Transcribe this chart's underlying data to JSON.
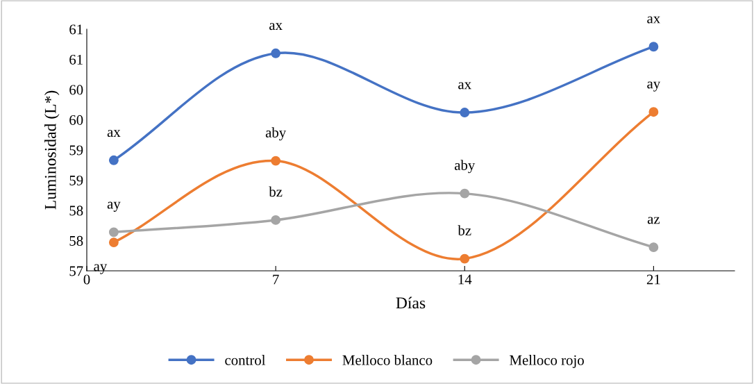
{
  "chart_data": {
    "type": "line",
    "xlabel": "Días",
    "ylabel": "Luminosidad (L*)",
    "x": [
      1,
      7,
      14,
      21
    ],
    "series": [
      {
        "name": "control",
        "color": "#4472c4",
        "values": [
          58.83,
          60.6,
          59.62,
          60.71
        ]
      },
      {
        "name": "Melloco blanco",
        "color": "#ed7d31",
        "values": [
          57.47,
          58.82,
          57.2,
          59.63
        ]
      },
      {
        "name": "Melloco rojo",
        "color": "#a5a5a5",
        "values": [
          57.64,
          57.84,
          58.28,
          57.39
        ]
      }
    ],
    "xlim": [
      0,
      24
    ],
    "xticks": [
      0,
      7,
      14,
      21
    ],
    "ylim": [
      57,
      61
    ],
    "yticks": [
      57,
      {
        "value": 57.5,
        "label": "58"
      },
      58,
      {
        "value": 58.5,
        "label": "59"
      },
      59,
      {
        "value": 59.5,
        "label": "60"
      },
      60,
      {
        "value": 60.5,
        "label": "61"
      },
      61
    ],
    "marker": "circle",
    "line_style": "solid",
    "grid": false,
    "legend": "bottom",
    "annotations": [
      {
        "text": "ax",
        "x": 1,
        "y": 58.83
      },
      {
        "text": "ax",
        "x": 7,
        "y": 60.6
      },
      {
        "text": "ax",
        "x": 14,
        "y": 59.62
      },
      {
        "text": "ax",
        "x": 21,
        "y": 60.71
      },
      {
        "text": "ay",
        "x": 1,
        "y": 57.47
      },
      {
        "text": "aby",
        "x": 7,
        "y": 58.82
      },
      {
        "text": "bz",
        "x": 14,
        "y": 57.2
      },
      {
        "text": "ay",
        "x": 21,
        "y": 59.63
      },
      {
        "text": "ay",
        "x": 1,
        "y": 57.64
      },
      {
        "text": "bz",
        "x": 7,
        "y": 57.84
      },
      {
        "text": "aby",
        "x": 14,
        "y": 58.28
      },
      {
        "text": "az",
        "x": 21,
        "y": 57.39
      }
    ]
  }
}
